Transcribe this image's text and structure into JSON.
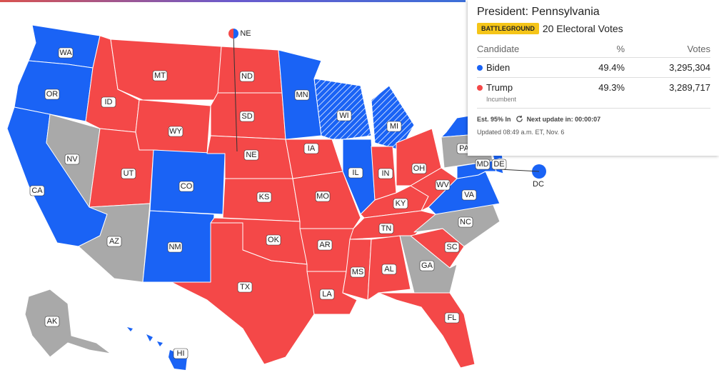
{
  "map": {
    "states": [
      {
        "label": "WA",
        "color": "#1a63f5"
      },
      {
        "label": "OR",
        "color": "#1a63f5"
      },
      {
        "label": "CA",
        "color": "#1a63f5"
      },
      {
        "label": "NV",
        "color": "#a9a9a9"
      },
      {
        "label": "ID",
        "color": "#f44848"
      },
      {
        "label": "MT",
        "color": "#f44848"
      },
      {
        "label": "WY",
        "color": "#f44848"
      },
      {
        "label": "UT",
        "color": "#f44848"
      },
      {
        "label": "AZ",
        "color": "#a9a9a9"
      },
      {
        "label": "CO",
        "color": "#1a63f5"
      },
      {
        "label": "NM",
        "color": "#1a63f5"
      },
      {
        "label": "ND",
        "color": "#f44848"
      },
      {
        "label": "SD",
        "color": "#f44848"
      },
      {
        "label": "NE",
        "color": "#f44848"
      },
      {
        "label": "KS",
        "color": "#f44848"
      },
      {
        "label": "OK",
        "color": "#f44848"
      },
      {
        "label": "TX",
        "color": "#f44848"
      },
      {
        "label": "MN",
        "color": "#1a63f5"
      },
      {
        "label": "IA",
        "color": "#f44848"
      },
      {
        "label": "MO",
        "color": "#f44848"
      },
      {
        "label": "AR",
        "color": "#f44848"
      },
      {
        "label": "LA",
        "color": "#f44848"
      },
      {
        "label": "WI",
        "color": "#1a63f5",
        "hatched": true
      },
      {
        "label": "MI",
        "color": "#1a63f5",
        "hatched": true
      },
      {
        "label": "IL",
        "color": "#1a63f5"
      },
      {
        "label": "IN",
        "color": "#f44848"
      },
      {
        "label": "OH",
        "color": "#f44848"
      },
      {
        "label": "KY",
        "color": "#f44848"
      },
      {
        "label": "TN",
        "color": "#f44848"
      },
      {
        "label": "MS",
        "color": "#f44848"
      },
      {
        "label": "AL",
        "color": "#f44848"
      },
      {
        "label": "GA",
        "color": "#a9a9a9"
      },
      {
        "label": "FL",
        "color": "#f44848"
      },
      {
        "label": "SC",
        "color": "#f44848"
      },
      {
        "label": "NC",
        "color": "#a9a9a9"
      },
      {
        "label": "VA",
        "color": "#1a63f5"
      },
      {
        "label": "WV",
        "color": "#f44848"
      },
      {
        "label": "PA",
        "color": "#a9a9a9"
      },
      {
        "label": "MD",
        "color": "#1a63f5"
      },
      {
        "label": "DE",
        "color": "#1a63f5"
      },
      {
        "label": "DC",
        "color": "#1a63f5"
      },
      {
        "label": "AK",
        "color": "#a9a9a9"
      },
      {
        "label": "HI",
        "color": "#1a63f5"
      }
    ],
    "ne_marker": {
      "label": "NE",
      "colors": [
        "#f44848",
        "#1a63f5"
      ]
    }
  },
  "panel": {
    "title": "President: Pennsylvania",
    "badge": "BATTLEGROUND",
    "electoral_votes": "20 Electoral Votes",
    "headers": [
      "Candidate",
      "%",
      "Votes"
    ],
    "rows": [
      {
        "name": "Biden",
        "color": "#1a63f5",
        "pct": "49.4%",
        "votes": "3,295,304"
      },
      {
        "name": "Trump",
        "color": "#f44848",
        "note": "Incumbent",
        "pct": "49.3%",
        "votes": "3,289,717"
      }
    ],
    "estimate": "Est. 95% In",
    "next_update": "Next update in: 00:00:07",
    "updated": "Updated 08:49 a.m. ET, Nov. 6"
  }
}
